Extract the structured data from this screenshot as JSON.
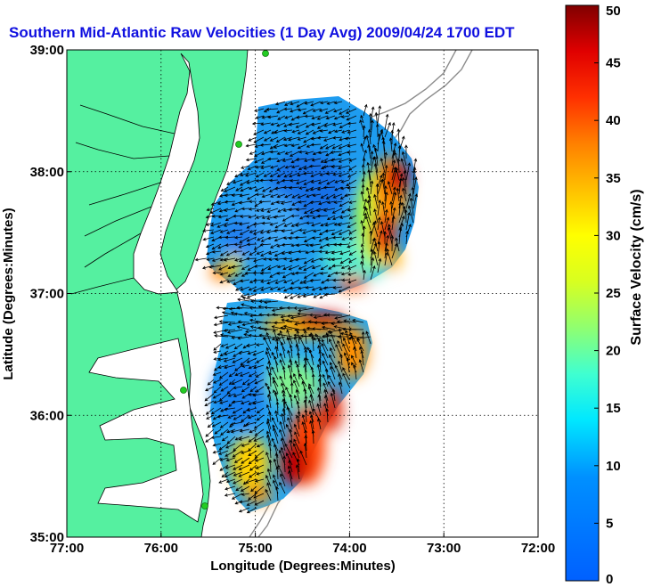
{
  "title": "Southern Mid-Atlantic Raw Velocities (1 Day Avg) 2009/04/24 1700 EDT",
  "xlabel": "Longitude (Degrees:Minutes)",
  "ylabel": "Latitude (Degrees:Minutes)",
  "map": {
    "lon_range": [
      -77,
      -72
    ],
    "lat_range": [
      35,
      39
    ],
    "x_ticks": [
      {
        "value": -77,
        "label": "77:00"
      },
      {
        "value": -76,
        "label": "76:00"
      },
      {
        "value": -75,
        "label": "75:00"
      },
      {
        "value": -74,
        "label": "74:00"
      },
      {
        "value": -73,
        "label": "73:00"
      },
      {
        "value": -72,
        "label": "72:00"
      }
    ],
    "y_ticks": [
      {
        "value": 35,
        "label": "35:00"
      },
      {
        "value": 36,
        "label": "36:00"
      },
      {
        "value": 37,
        "label": "37:00"
      },
      {
        "value": 38,
        "label": "38:00"
      },
      {
        "value": 39,
        "label": "39:00"
      }
    ],
    "grid": true,
    "colors": {
      "land": "#55f0a0",
      "water": "#ffffff",
      "coast": "#000000",
      "bathymetry": "#8c8c8c",
      "station": "#22cc22"
    }
  },
  "colorbar": {
    "label": "Surface Velocity (cm/s)",
    "min": 0,
    "max": 50,
    "ticks": [
      {
        "value": 0,
        "label": "0"
      },
      {
        "value": 5,
        "label": "5"
      },
      {
        "value": 10,
        "label": "10"
      },
      {
        "value": 15,
        "label": "15"
      },
      {
        "value": 20,
        "label": "20"
      },
      {
        "value": 25,
        "label": "25"
      },
      {
        "value": 30,
        "label": "30"
      },
      {
        "value": 35,
        "label": "35"
      },
      {
        "value": 40,
        "label": "40"
      },
      {
        "value": 45,
        "label": "45"
      },
      {
        "value": 50,
        "label": "50"
      }
    ],
    "colormap": "jet"
  }
}
